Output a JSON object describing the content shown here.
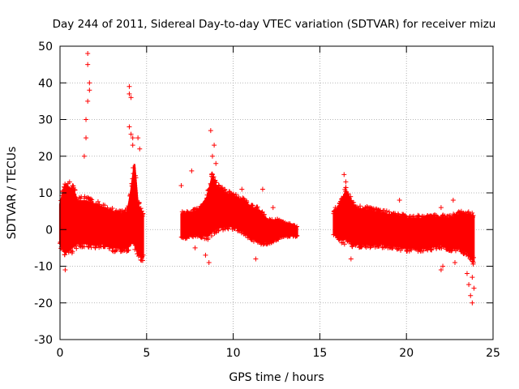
{
  "chart_data": {
    "type": "scatter",
    "title": "Day 244 of 2011, Sidereal Day-to-day VTEC variation (SDTVAR) for receiver mizu",
    "xlabel": "GPS time / hours",
    "ylabel": "SDTVAR / TECUs",
    "xlim": [
      0,
      25
    ],
    "ylim": [
      -30,
      50
    ],
    "xticks": [
      0,
      5,
      10,
      15,
      20,
      25
    ],
    "yticks": [
      -30,
      -20,
      -10,
      0,
      10,
      20,
      30,
      40,
      50
    ],
    "grid": true,
    "marker": "+",
    "color": "#ff0000",
    "series": [
      {
        "name": "mizu",
        "segments": [
          {
            "x_range": [
              0.0,
              4.8
            ],
            "envelope": [
              [
                0.0,
                -5,
                8
              ],
              [
                0.3,
                -8,
                14
              ],
              [
                0.8,
                -6,
                12
              ],
              [
                1.0,
                -5,
                9
              ],
              [
                1.5,
                -5,
                9
              ],
              [
                2.0,
                -5,
                8
              ],
              [
                2.5,
                -5,
                7
              ],
              [
                3.0,
                -6,
                6
              ],
              [
                3.5,
                -6,
                5
              ],
              [
                3.9,
                -6,
                6
              ],
              [
                4.1,
                -5,
                12
              ],
              [
                4.3,
                -6,
                20
              ],
              [
                4.5,
                -8,
                8
              ],
              [
                4.8,
                -9,
                5
              ]
            ],
            "outliers": [
              [
                0.3,
                -11
              ],
              [
                1.6,
                48
              ],
              [
                1.6,
                45
              ],
              [
                1.7,
                40
              ],
              [
                1.7,
                38
              ],
              [
                1.6,
                35
              ],
              [
                1.5,
                30
              ],
              [
                1.5,
                25
              ],
              [
                1.4,
                20
              ],
              [
                4.0,
                39
              ],
              [
                4.0,
                37
              ],
              [
                4.1,
                36
              ],
              [
                4.0,
                28
              ],
              [
                4.1,
                26
              ],
              [
                4.2,
                25
              ],
              [
                4.2,
                23
              ],
              [
                4.5,
                25
              ],
              [
                4.6,
                22
              ]
            ]
          },
          {
            "x_range": [
              7.0,
              13.7
            ],
            "envelope": [
              [
                7.0,
                -3,
                5
              ],
              [
                7.5,
                -2,
                5
              ],
              [
                8.0,
                -2,
                6
              ],
              [
                8.5,
                -3,
                10
              ],
              [
                8.8,
                -2,
                16
              ],
              [
                9.0,
                -1,
                13
              ],
              [
                9.5,
                0,
                11
              ],
              [
                10.0,
                0,
                10
              ],
              [
                10.5,
                -1,
                9
              ],
              [
                11.0,
                -3,
                7
              ],
              [
                11.5,
                -4,
                6
              ],
              [
                12.0,
                -4,
                3
              ],
              [
                12.5,
                -3,
                3
              ],
              [
                13.0,
                -2,
                2
              ],
              [
                13.7,
                -2,
                1
              ]
            ],
            "outliers": [
              [
                7.0,
                12
              ],
              [
                7.6,
                16
              ],
              [
                8.7,
                27
              ],
              [
                8.9,
                23
              ],
              [
                8.8,
                20
              ],
              [
                9.0,
                18
              ],
              [
                8.6,
                -9
              ],
              [
                8.4,
                -7
              ],
              [
                7.8,
                -5
              ],
              [
                11.3,
                -8
              ],
              [
                10.5,
                11
              ],
              [
                11.7,
                11
              ],
              [
                12.3,
                6
              ]
            ]
          },
          {
            "x_range": [
              15.8,
              23.9
            ],
            "envelope": [
              [
                15.8,
                -2,
                5
              ],
              [
                16.3,
                -4,
                9
              ],
              [
                16.5,
                -4,
                12
              ],
              [
                17.0,
                -5,
                7
              ],
              [
                18.0,
                -5,
                6
              ],
              [
                19.0,
                -5,
                5
              ],
              [
                20.0,
                -6,
                4
              ],
              [
                21.0,
                -6,
                4
              ],
              [
                22.0,
                -5,
                4
              ],
              [
                22.5,
                -6,
                4
              ],
              [
                23.0,
                -6,
                5
              ],
              [
                23.5,
                -7,
                5
              ],
              [
                23.9,
                -10,
                5
              ]
            ],
            "outliers": [
              [
                16.4,
                15
              ],
              [
                16.5,
                13
              ],
              [
                15.9,
                6
              ],
              [
                16.8,
                -8
              ],
              [
                19.6,
                8
              ],
              [
                22.0,
                6
              ],
              [
                22.7,
                8
              ],
              [
                22.0,
                -11
              ],
              [
                22.1,
                -10
              ],
              [
                22.8,
                -9
              ],
              [
                23.5,
                -12
              ],
              [
                23.6,
                -15
              ],
              [
                23.7,
                -18
              ],
              [
                23.8,
                -20
              ],
              [
                23.8,
                -13
              ],
              [
                23.9,
                -16
              ]
            ]
          }
        ]
      }
    ]
  }
}
